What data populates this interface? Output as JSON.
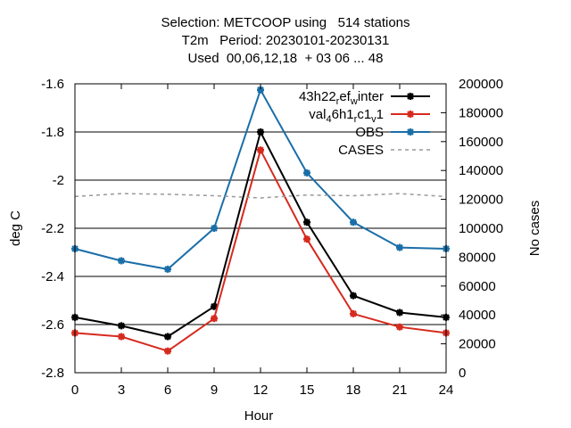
{
  "title_lines": [
    "Selection: METCOOP using   514 stations",
    "T2m   Period: 20230101-20230131",
    "Used  00,06,12,18  + 03 06 ... 48"
  ],
  "chart_data": {
    "type": "line",
    "xlabel": "Hour",
    "ylabel": "deg C",
    "y2label": "No cases",
    "x": [
      0,
      3,
      6,
      9,
      12,
      15,
      18,
      21,
      24
    ],
    "xlim": [
      0,
      24
    ],
    "ylim": [
      -2.8,
      -1.6
    ],
    "y2lim": [
      0,
      200000
    ],
    "x_ticks": [
      "0",
      "3",
      "6",
      "9",
      "12",
      "15",
      "18",
      "21",
      "24"
    ],
    "y_ticks": [
      "-2.8",
      "-2.6",
      "-2.4",
      "-2.2",
      "-2",
      "-1.8",
      "-1.6"
    ],
    "y2_ticks": [
      "0",
      "20000",
      "40000",
      "60000",
      "80000",
      "100000",
      "120000",
      "140000",
      "160000",
      "180000",
      "200000"
    ],
    "grid": true,
    "legend_position": "top-right",
    "series": [
      {
        "name": "43h22_ref_winter",
        "legend_parts": [
          [
            "43h22",
            ""
          ],
          [
            "r",
            "sub"
          ],
          [
            "ef",
            ""
          ],
          [
            "w",
            "sub"
          ],
          [
            "inter",
            ""
          ]
        ],
        "color": "#000000",
        "axis": "left",
        "style": "solid-points",
        "values": [
          -2.57,
          -2.605,
          -2.65,
          -2.525,
          -1.8,
          -2.175,
          -2.48,
          -2.55,
          -2.57
        ]
      },
      {
        "name": "val_46h1_rc1_v1",
        "legend_parts": [
          [
            "val",
            ""
          ],
          [
            "4",
            "sub"
          ],
          [
            "6h1",
            ""
          ],
          [
            "r",
            "sub"
          ],
          [
            "c1",
            ""
          ],
          [
            "v",
            "sub"
          ],
          [
            "1",
            ""
          ]
        ],
        "color": "#d62a1e",
        "axis": "left",
        "style": "solid-points",
        "values": [
          -2.635,
          -2.65,
          -2.71,
          -2.575,
          -1.875,
          -2.245,
          -2.555,
          -2.61,
          -2.635
        ]
      },
      {
        "name": "OBS",
        "legend_parts": [
          [
            "OBS",
            ""
          ]
        ],
        "color": "#1a6ea8",
        "axis": "left",
        "style": "solid-points",
        "values": [
          -2.285,
          -2.335,
          -2.37,
          -2.2,
          -1.625,
          -1.97,
          -2.175,
          -2.28,
          -2.285
        ]
      },
      {
        "name": "CASES",
        "legend_parts": [
          [
            "CASES",
            ""
          ]
        ],
        "color": "#999999",
        "axis": "right",
        "style": "dashed",
        "values": [
          122000,
          124000,
          123500,
          122500,
          121000,
          123000,
          122500,
          124000,
          122000
        ]
      }
    ]
  }
}
